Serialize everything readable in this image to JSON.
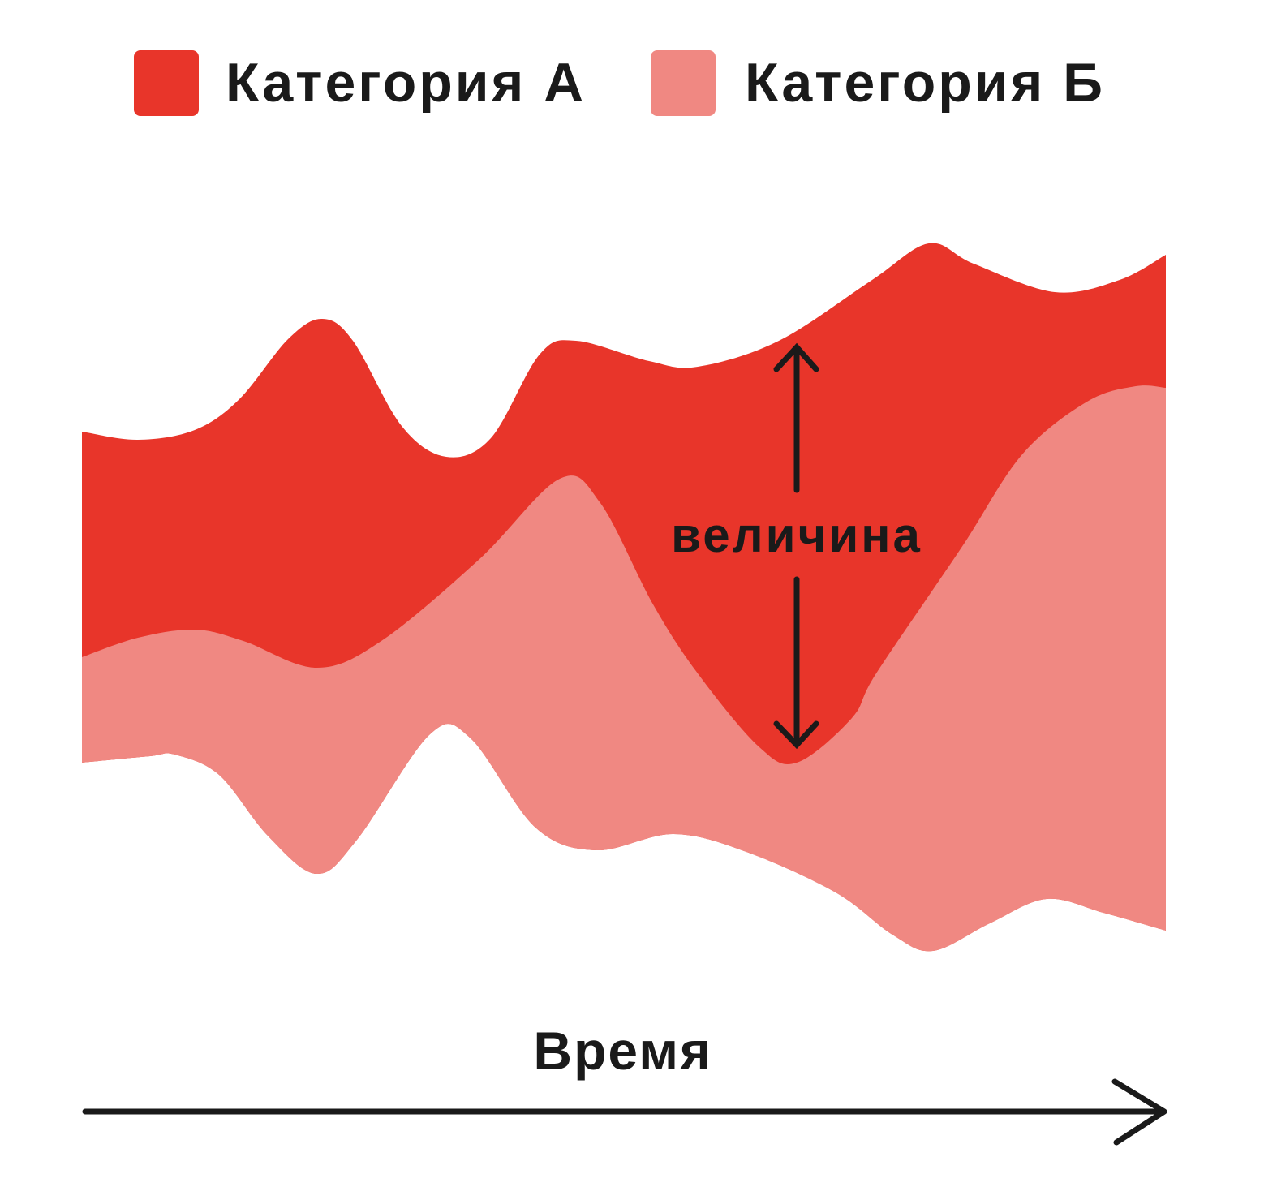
{
  "legend": {
    "items": [
      {
        "label": "Категория А"
      },
      {
        "label": "Категория Б"
      }
    ]
  },
  "annotation": "величина",
  "axis_label": "Время"
}
